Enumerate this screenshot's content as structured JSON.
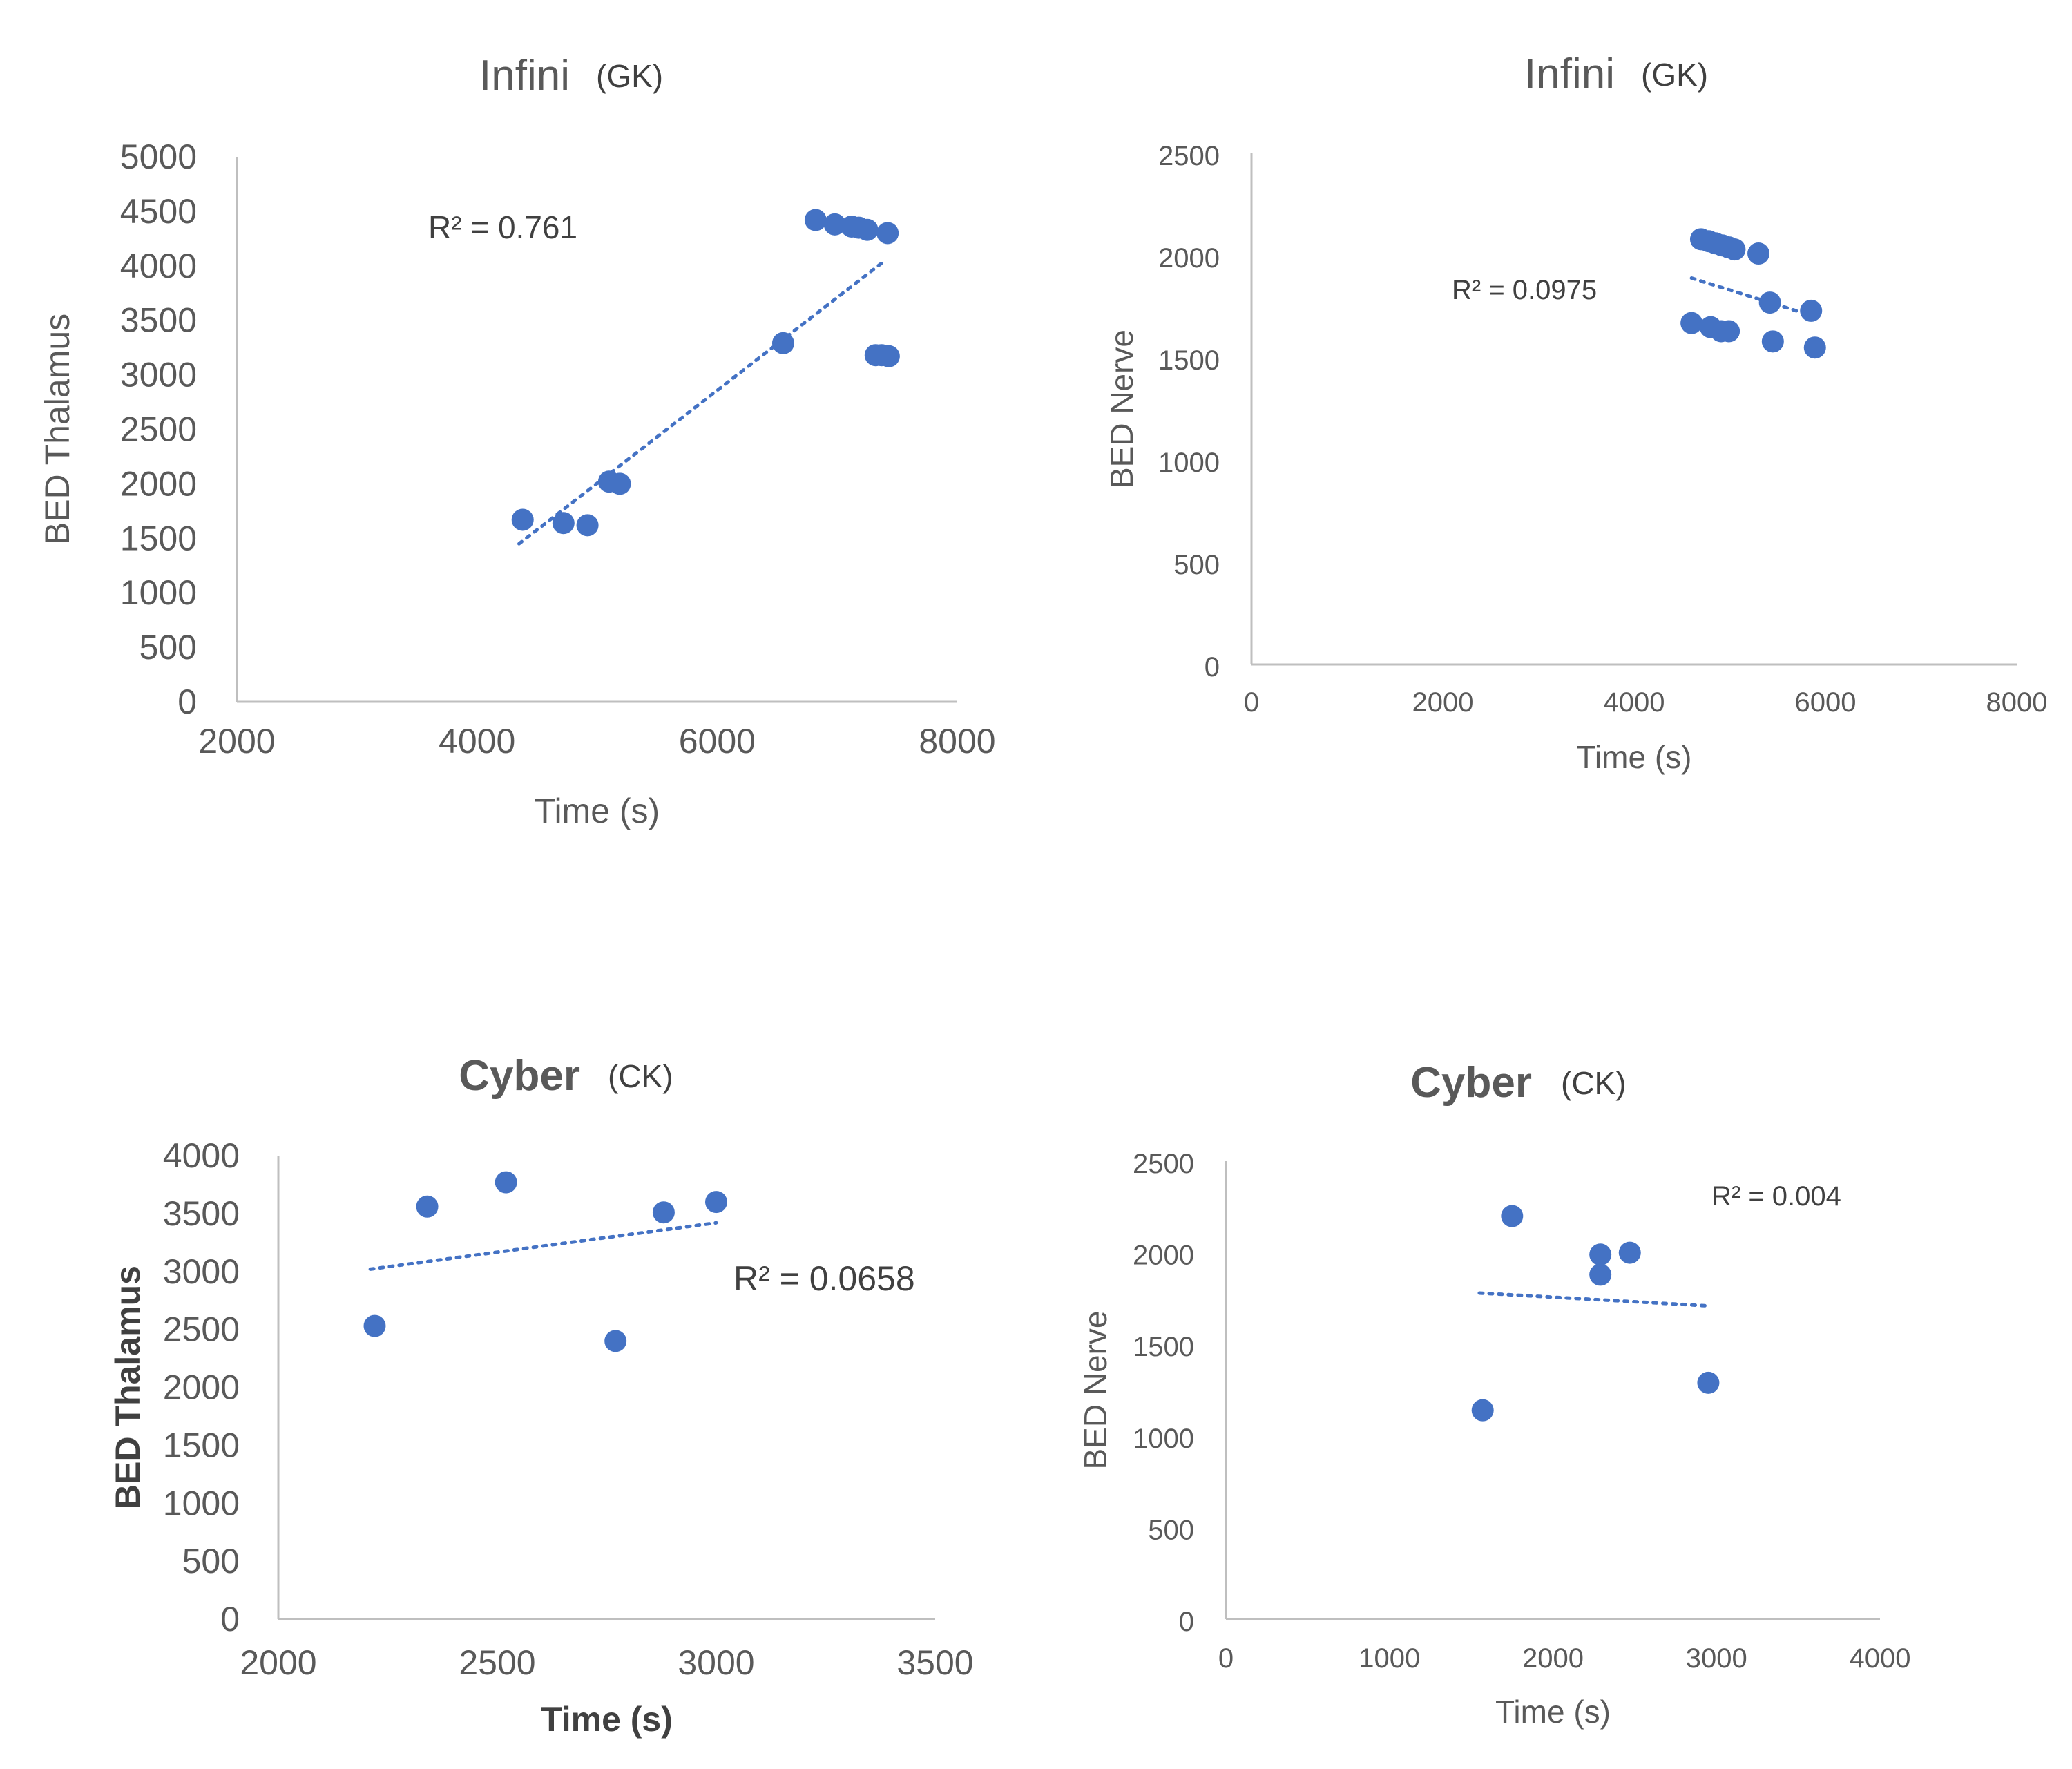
{
  "chart_data": [
    {
      "type": "scatter",
      "title": "Infini",
      "subtitle": "(GK)",
      "xlabel": "Time (s)",
      "ylabel": "BED Thalamus",
      "xlim": [
        2000,
        8000
      ],
      "ylim": [
        0,
        5000
      ],
      "xticks": [
        2000,
        4000,
        6000,
        8000
      ],
      "yticks": [
        0,
        500,
        1000,
        1500,
        2000,
        2500,
        3000,
        3500,
        4000,
        4500,
        5000
      ],
      "grid": false,
      "x": [
        4380,
        4720,
        4920,
        5100,
        5190,
        6550,
        6820,
        6980,
        7120,
        7180,
        7250,
        7420,
        7320,
        7370,
        7430
      ],
      "y": [
        1670,
        1640,
        1620,
        2020,
        2000,
        3290,
        4420,
        4380,
        4360,
        4350,
        4330,
        4300,
        3180,
        3180,
        3170
      ],
      "trendline": {
        "type": "linear",
        "x": [
          4350,
          7400
        ],
        "y": [
          1450,
          4050
        ]
      },
      "annotation": "R² = 0.761"
    },
    {
      "type": "scatter",
      "title": "Infini",
      "subtitle": "(GK)",
      "xlabel": "Time (s)",
      "ylabel": "BED Nerve",
      "xlim": [
        0,
        8000
      ],
      "ylim": [
        0,
        2500
      ],
      "xticks": [
        0,
        2000,
        4000,
        6000,
        8000
      ],
      "yticks": [
        0,
        500,
        1000,
        1500,
        2000,
        2500
      ],
      "grid": false,
      "x": [
        4700,
        4780,
        4850,
        4920,
        4990,
        5050,
        5300,
        5420,
        5850,
        4600,
        4800,
        4910,
        4990,
        5450,
        5890
      ],
      "y": [
        2080,
        2070,
        2060,
        2050,
        2040,
        2030,
        2010,
        1770,
        1730,
        1670,
        1650,
        1630,
        1630,
        1580,
        1550
      ],
      "trendline": {
        "type": "linear",
        "x": [
          4600,
          5900
        ],
        "y": [
          1890,
          1700
        ]
      },
      "annotation": "R² = 0.0975"
    },
    {
      "type": "scatter",
      "title": "Cyber",
      "subtitle": "(CK)",
      "xlabel": "Time (s)",
      "ylabel": "BED Thalamus",
      "xlim": [
        2000,
        3500
      ],
      "ylim": [
        0,
        4000
      ],
      "xticks": [
        2000,
        2500,
        3000,
        3500
      ],
      "yticks": [
        0,
        500,
        1000,
        1500,
        2000,
        2500,
        3000,
        3500,
        4000
      ],
      "grid": false,
      "x": [
        2220,
        2340,
        2520,
        2770,
        2880,
        3000
      ],
      "y": [
        2530,
        3560,
        3770,
        2400,
        3510,
        3600
      ],
      "trendline": {
        "type": "linear",
        "x": [
          2210,
          3000
        ],
        "y": [
          3020,
          3420
        ]
      },
      "annotation": "R² = 0.0658"
    },
    {
      "type": "scatter",
      "title": "Cyber",
      "subtitle": "(CK)",
      "xlabel": "Time (s)",
      "ylabel": "BED Nerve",
      "xlim": [
        0,
        4000
      ],
      "ylim": [
        0,
        2500
      ],
      "xticks": [
        0,
        1000,
        2000,
        3000,
        4000
      ],
      "yticks": [
        0,
        500,
        1000,
        1500,
        2000,
        2500
      ],
      "grid": false,
      "x": [
        1570,
        1750,
        2290,
        2290,
        2470,
        2950
      ],
      "y": [
        1140,
        2200,
        1990,
        1880,
        2000,
        1290
      ],
      "trendline": {
        "type": "linear",
        "x": [
          1550,
          2950
        ],
        "y": [
          1780,
          1710
        ]
      },
      "annotation": "R² = 0.004"
    }
  ]
}
